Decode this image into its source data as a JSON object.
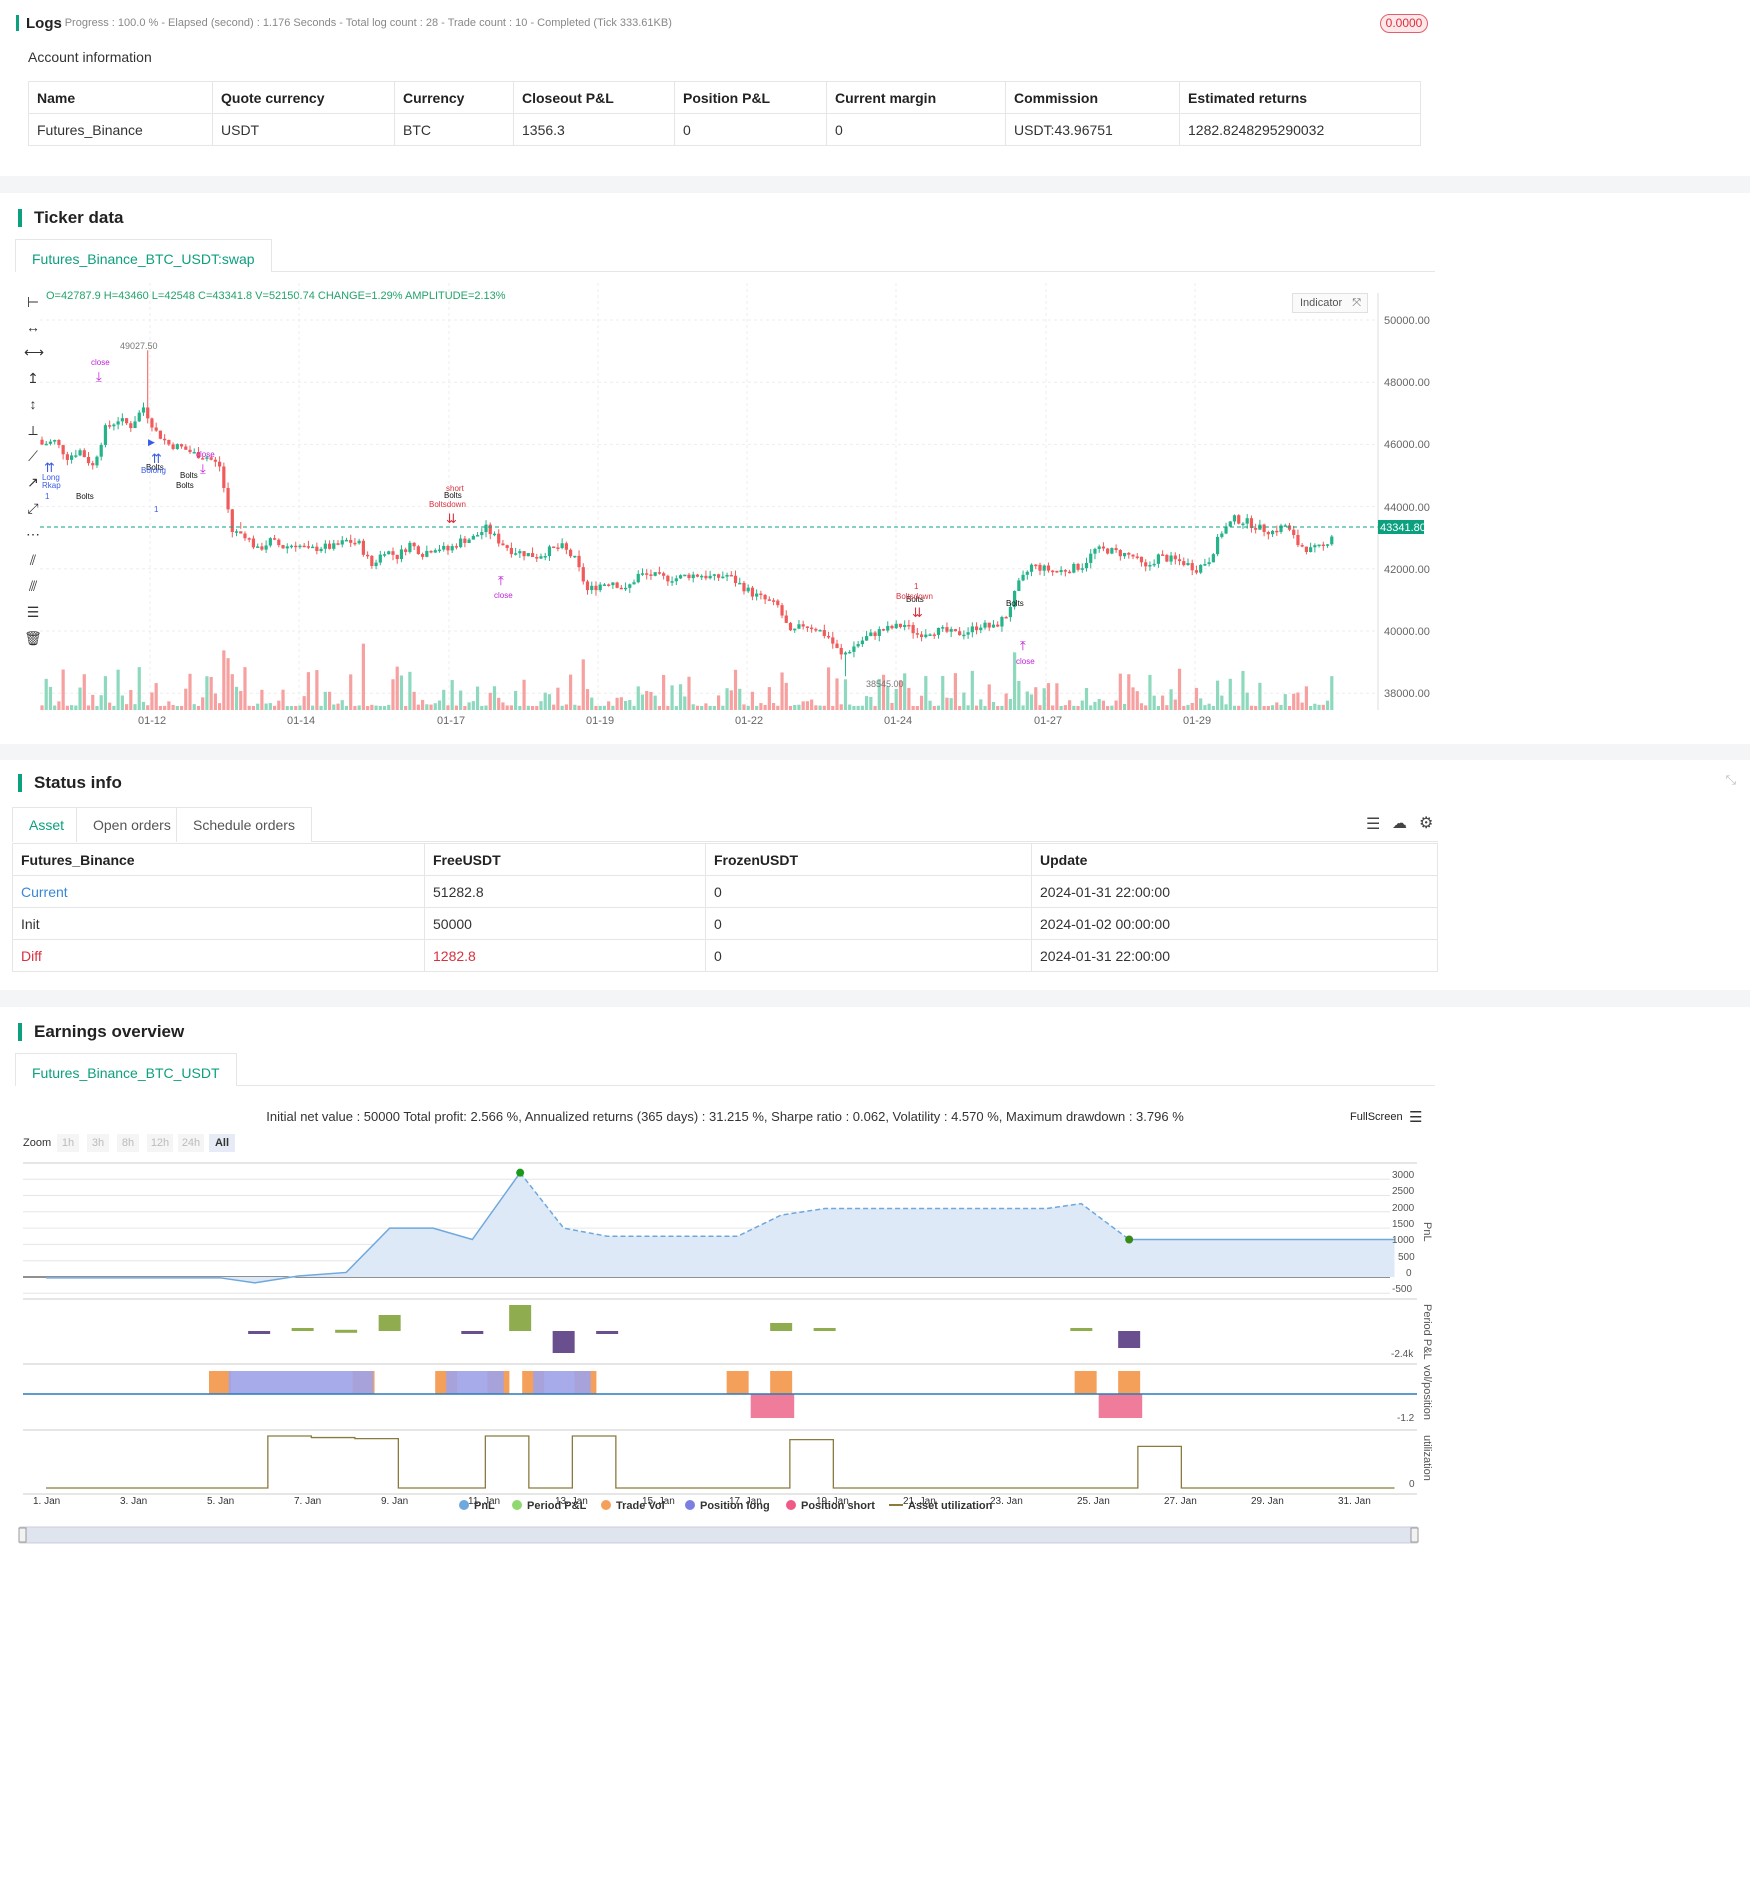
{
  "logs": {
    "title": "Logs",
    "progress": "- Progress : 100.0 % - Elapsed (second) : 1.176  Seconds - Total log count : 28 - Trade count : 10 - Completed (Tick 333.61KB)",
    "badge": "0.0000",
    "account_label": "Account information",
    "headers": [
      "Name",
      "Quote currency",
      "Currency",
      "Closeout P&L",
      "Position P&L",
      "Current margin",
      "Commission",
      "Estimated returns"
    ],
    "row": [
      "Futures_Binance",
      "USDT",
      "BTC",
      "1356.3",
      "0",
      "0",
      "USDT:43.96751",
      "1282.8248295290032"
    ]
  },
  "ticker": {
    "title": "Ticker data",
    "tab": "Futures_Binance_BTC_USDT:swap",
    "ohlc": "O=42787.9 H=43460 L=42548 C=43341.8 V=52150.74 CHANGE=1.29% AMPLITUDE=2.13%",
    "indicator_btn": "Indicator",
    "price_tag": "43341.80",
    "high_label": "49027.50",
    "low_label": "38545.00",
    "y_ticks": [
      "50000.00",
      "48000.00",
      "46000.00",
      "44000.00",
      "42000.00",
      "40000.00",
      "38000.00"
    ],
    "x_ticks": [
      "01-12",
      "01-14",
      "01-17",
      "01-19",
      "01-22",
      "01-24",
      "01-27",
      "01-29"
    ],
    "markers": [
      {
        "text": "close"
      },
      {
        "text": "close"
      },
      {
        "text": "close"
      },
      {
        "text": "close"
      },
      {
        "text": "Bolts"
      },
      {
        "text": "Bolts"
      },
      {
        "text": "Bolts"
      },
      {
        "text": "Bolts"
      },
      {
        "text": "Bolts"
      },
      {
        "text": "Bolts"
      },
      {
        "text": "Bolts"
      },
      {
        "text": "Boltsdown"
      },
      {
        "text": "Boltsdown"
      },
      {
        "text": "Bolong"
      },
      {
        "text": "Rkap"
      },
      {
        "text": "Long"
      },
      {
        "text": "short"
      },
      {
        "text": "1"
      },
      {
        "text": "1"
      },
      {
        "text": "1"
      }
    ],
    "chart_data": {
      "type": "candlestick",
      "symbol": "Futures_Binance_BTC_USDT:swap",
      "x_labels": [
        "01-12",
        "01-14",
        "01-17",
        "01-19",
        "01-22",
        "01-24",
        "01-27",
        "01-29"
      ],
      "ylim": [
        37500,
        51000
      ],
      "last_close": 43341.8,
      "max_high": 49027.5,
      "min_low": 38545.0,
      "path": [
        46000,
        46100,
        45600,
        45800,
        45300,
        46500,
        46800,
        46600,
        47200,
        46400,
        46000,
        45900,
        45700,
        45600,
        45300,
        43200,
        43100,
        42600,
        42900,
        42700,
        42800,
        42600,
        42700,
        42700,
        42900,
        42800,
        42100,
        42600,
        42400,
        42800,
        42500,
        42700,
        42600,
        42900,
        43000,
        43300,
        42900,
        42600,
        42500,
        42400,
        42600,
        42700,
        42300,
        41300,
        41500,
        41600,
        41300,
        41800,
        41800,
        41700,
        41700,
        41800,
        41800,
        41700,
        41800,
        41500,
        41200,
        41000,
        40800,
        39900,
        40200,
        40100,
        39800,
        39200,
        39500,
        39800,
        40000,
        40100,
        40200,
        39900,
        40000,
        40000,
        39900,
        40000,
        40200,
        40100,
        40500,
        41500,
        42100,
        42000,
        41900,
        42000,
        42100,
        42600,
        42600,
        42500,
        42400,
        42000,
        42400,
        42300,
        42200,
        42000,
        42300,
        43200,
        43600,
        43500,
        43300,
        43200,
        43400,
        42800,
        42600,
        42700,
        43300
      ]
    }
  },
  "status": {
    "title": "Status info",
    "tabs": [
      "Asset",
      "Open orders",
      "Schedule orders"
    ],
    "headers": [
      "Futures_Binance",
      "FreeUSDT",
      "FrozenUSDT",
      "Update"
    ],
    "rows": [
      [
        "Current",
        "51282.8",
        "0",
        "2024-01-31 22:00:00"
      ],
      [
        "Init",
        "50000",
        "0",
        "2024-01-02 00:00:00"
      ],
      [
        "Diff",
        "1282.8",
        "0",
        "2024-01-31 22:00:00"
      ]
    ]
  },
  "earnings": {
    "title": "Earnings overview",
    "tab": "Futures_Binance_BTC_USDT",
    "summary": "Initial net value : 50000 Total profit: 2.566 %, Annualized returns (365 days) : 31.215 %, Sharpe ratio : 0.062, Volatility : 4.570 %, Maximum drawdown : 3.796 %",
    "fullscreen": "FullScreen",
    "zoom_label": "Zoom",
    "zoom_btns": [
      "1h",
      "3h",
      "8h",
      "12h",
      "24h",
      "All"
    ],
    "pnl_ticks": [
      "3000",
      "2500",
      "2000",
      "1500",
      "1000",
      "500",
      "0",
      "-500"
    ],
    "pp_tick": "-2.4k",
    "vol_tick": "-1.2",
    "util_tick": "0",
    "y_titles": [
      "PnL",
      "Period P&L",
      "vol/position",
      "utilization"
    ],
    "x_ticks": [
      "1. Jan",
      "3. Jan",
      "5. Jan",
      "7. Jan",
      "9. Jan",
      "11. Jan",
      "13. Jan",
      "15. Jan",
      "17. Jan",
      "19. Jan",
      "21. Jan",
      "23. Jan",
      "25. Jan",
      "27. Jan",
      "29. Jan",
      "31. Jan"
    ],
    "legend": [
      "PnL",
      "Period P&L",
      "Trade Vol",
      "Position long",
      "Position short",
      "Asset utilization"
    ],
    "colors": {
      "pnl": "#6fa8dc",
      "period_pos": "#8fac4f",
      "period_neg": "#6a4f8e",
      "trade_vol": "#f5a05a",
      "pos_long": "#9ea2e8",
      "pos_short": "#f07c9c",
      "util": "#8a7a3f"
    },
    "chart_data": {
      "type": "area",
      "x_unit": "day",
      "pnl": [
        [
          1,
          -25
        ],
        [
          2,
          -25
        ],
        [
          3,
          -25
        ],
        [
          4,
          -25
        ],
        [
          5,
          -25
        ],
        [
          5.8,
          -180
        ],
        [
          6.8,
          30
        ],
        [
          7.9,
          140
        ],
        [
          8.9,
          1500
        ],
        [
          9.9,
          1500
        ],
        [
          10.8,
          1150
        ],
        [
          11.9,
          3200
        ],
        [
          12.9,
          1500
        ],
        [
          13.9,
          1250
        ],
        [
          15,
          1250
        ],
        [
          16,
          1250
        ],
        [
          16.9,
          1250
        ],
        [
          17.9,
          1900
        ],
        [
          18.9,
          2100
        ],
        [
          20,
          2100
        ],
        [
          21,
          2100
        ],
        [
          22,
          2100
        ],
        [
          23,
          2100
        ],
        [
          24,
          2100
        ],
        [
          24.8,
          2250
        ],
        [
          25.9,
          1150
        ],
        [
          26.9,
          1150
        ],
        [
          28,
          1150
        ],
        [
          29,
          1150
        ],
        [
          30,
          1150
        ],
        [
          31,
          1150
        ],
        [
          32,
          1150
        ]
      ],
      "period_pnl": [
        [
          5.9,
          -110
        ],
        [
          6.9,
          150
        ],
        [
          7.9,
          60
        ],
        [
          8.9,
          800
        ],
        [
          10.8,
          -110
        ],
        [
          11.9,
          1300
        ],
        [
          12.9,
          -1100
        ],
        [
          13.9,
          -100
        ],
        [
          17.9,
          400
        ],
        [
          18.9,
          150
        ],
        [
          24.8,
          150
        ],
        [
          25.9,
          -850
        ]
      ]
    }
  }
}
